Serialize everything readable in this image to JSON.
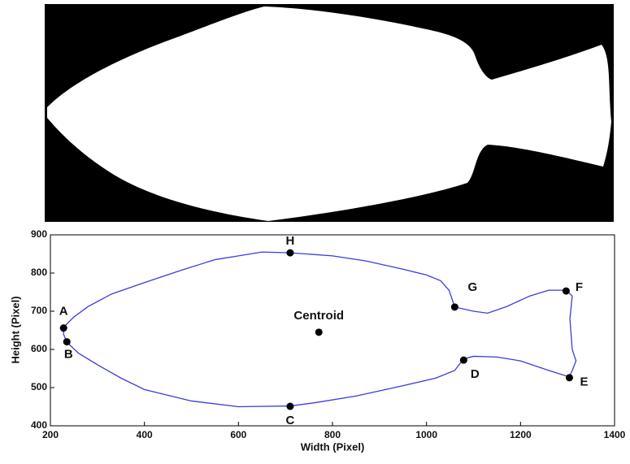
{
  "chart_data": {
    "type": "line",
    "xlabel": "Width (Pixel)",
    "ylabel": "Height (Pixel)",
    "xlim": [
      200,
      1400
    ],
    "ylim": [
      400,
      900
    ],
    "xticks": [
      200,
      400,
      600,
      800,
      1000,
      1200,
      1400
    ],
    "yticks": [
      400,
      500,
      600,
      700,
      800,
      900
    ],
    "series": [
      {
        "color": "#3c3cdc",
        "x": [
          228,
          250,
          280,
          330,
          400,
          480,
          550,
          600,
          650,
          710,
          800,
          870,
          950,
          1000,
          1030,
          1048,
          1060,
          1100,
          1130,
          1170,
          1220,
          1260,
          1297,
          1310,
          1305,
          1310,
          1318,
          1310,
          1304,
          1260,
          1200,
          1150,
          1100,
          1079,
          1060,
          1020,
          950,
          850,
          760,
          710,
          600,
          500,
          400,
          350,
          300,
          260,
          235,
          228,
          228
        ],
        "values": [
          658,
          685,
          712,
          745,
          775,
          808,
          835,
          845,
          855,
          853,
          845,
          832,
          810,
          795,
          780,
          755,
          711,
          700,
          695,
          712,
          740,
          755,
          755,
          740,
          680,
          600,
          570,
          545,
          528,
          545,
          570,
          580,
          582,
          575,
          545,
          525,
          505,
          478,
          460,
          452,
          450,
          465,
          495,
          525,
          560,
          590,
          619,
          640,
          658
        ]
      }
    ],
    "points": [
      {
        "label": "A",
        "x": 228,
        "y": 656
      },
      {
        "label": "B",
        "x": 235,
        "y": 620
      },
      {
        "label": "C",
        "x": 710,
        "y": 451
      },
      {
        "label": "D",
        "x": 1079,
        "y": 572
      },
      {
        "label": "E",
        "x": 1304,
        "y": 526
      },
      {
        "label": "F",
        "x": 1297,
        "y": 753
      },
      {
        "label": "G",
        "x": 1060,
        "y": 711
      },
      {
        "label": "H",
        "x": 710,
        "y": 853
      },
      {
        "label": "Centroid",
        "x": 771,
        "y": 645
      }
    ]
  }
}
